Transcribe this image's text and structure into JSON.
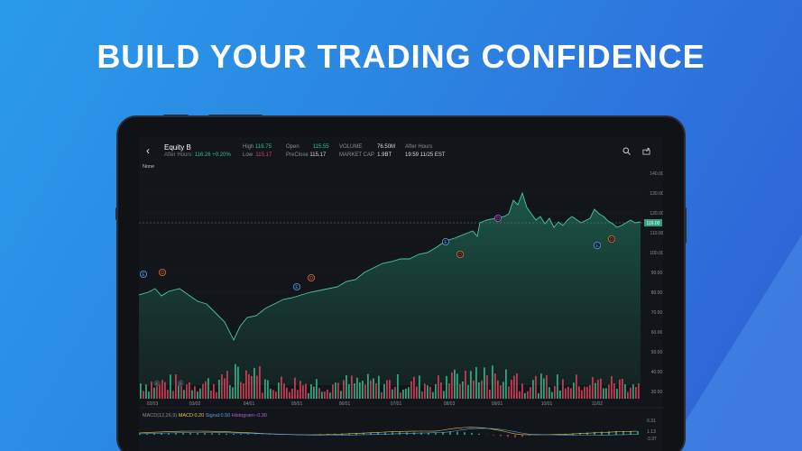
{
  "headline": "BUILD YOUR TRADING CONFIDENCE",
  "header": {
    "symbol": "Equity B",
    "after_hours_label": "After Hours:",
    "after_hours_value": "116.26 +0.20%",
    "high_label": "High",
    "high": "116.75",
    "low_label": "Low",
    "low": "115.17",
    "open_label": "Open",
    "open": "115.55",
    "preclose_label": "PreClose",
    "preclose": "115.17",
    "volume_label": "VOLUME",
    "volume": "76.50M",
    "mcap_label": "MARKET CAP",
    "mcap": "1.9BT",
    "ah_label": "After Hours",
    "ah_time": "19:59 11/25 EST"
  },
  "period": "None",
  "price_badge": "116.00",
  "y_ticks": [
    "140.00",
    "130.00",
    "120.00",
    "110.00",
    "100.00",
    "90.00",
    "80.00",
    "70.00",
    "60.00",
    "50.00",
    "40.00",
    "30.00"
  ],
  "x_ticks": [
    "02/03",
    "03/02",
    "04/01",
    "05/01",
    "06/01",
    "07/01",
    "08/03",
    "09/01",
    "10/01",
    "11/02"
  ],
  "macd": {
    "title": "MACD(12,26,9)",
    "macd_label": "MACD:0.20",
    "signal_label": "Signal:0.50",
    "hist_label": "Histogram:-0.30",
    "ticks": [
      "6.31",
      "1.13",
      "-3.37"
    ]
  },
  "markers": [
    "E",
    "D",
    "E",
    "D",
    "E",
    "D",
    "D",
    "E",
    "D"
  ],
  "colors": {
    "up": "#2fc08c",
    "down": "#e0405e",
    "line": "#49c9a0"
  },
  "icons": [
    "back-arrow-icon",
    "search-icon",
    "share-icon",
    "zoom-left-icon",
    "zoom-right-icon"
  ]
}
